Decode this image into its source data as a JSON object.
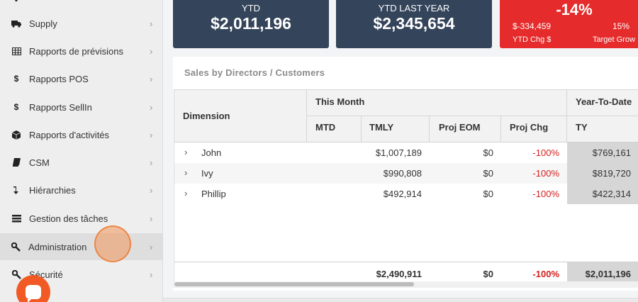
{
  "sidebar": {
    "items": [
      {
        "label": "Supply",
        "icon": "truck-icon",
        "glyph": "🚚"
      },
      {
        "label": "Rapports de prévisions",
        "icon": "table-icon",
        "glyph": "▦"
      },
      {
        "label": "Rapports POS",
        "icon": "dollar-icon",
        "glyph": "$"
      },
      {
        "label": "Rapports SellIn",
        "icon": "dollar-icon",
        "glyph": "$"
      },
      {
        "label": "Rapports d'activités",
        "icon": "cube-icon",
        "glyph": "⬢"
      },
      {
        "label": "CSM",
        "icon": "book-icon",
        "glyph": "▰"
      },
      {
        "label": "Hiérarchies",
        "icon": "level-down-icon",
        "glyph": "↴"
      },
      {
        "label": "Gestion des tâches",
        "icon": "tasks-icon",
        "glyph": "☰"
      },
      {
        "label": "Administration",
        "icon": "wrench-icon",
        "glyph": "🔧"
      },
      {
        "label": "Sécurité",
        "icon": "wrench-icon",
        "glyph": "🔧"
      }
    ],
    "chevron": "›",
    "active_index": 8
  },
  "kpis": {
    "ytd": {
      "label": "YTD",
      "value": "$2,011,196"
    },
    "ytd_last_year": {
      "label": "YTD LAST YEAR",
      "value": "$2,345,654"
    },
    "change": {
      "percent": "-14%",
      "chg_value": "$-334,459",
      "chg_label": "YTD Chg $",
      "target_value": "15%",
      "target_label": "Target Grow"
    }
  },
  "report": {
    "title": "Sales by Directors / Customers",
    "headers": {
      "dimension": "Dimension",
      "group_this_month": "This Month",
      "group_ytd": "Year-To-Date",
      "mtd": "MTD",
      "tmly": "TMLY",
      "proj_eom": "Proj EOM",
      "proj_chg": "Proj Chg",
      "ty": "TY"
    },
    "rows": [
      {
        "name": "John",
        "mtd": "",
        "tmly": "$1,007,189",
        "proj_eom": "$0",
        "proj_chg": "-100%",
        "ty": "$769,161"
      },
      {
        "name": "Ivy",
        "mtd": "",
        "tmly": "$990,808",
        "proj_eom": "$0",
        "proj_chg": "-100%",
        "ty": "$819,720"
      },
      {
        "name": "Phillip",
        "mtd": "",
        "tmly": "$492,914",
        "proj_eom": "$0",
        "proj_chg": "-100%",
        "ty": "$422,314"
      }
    ],
    "total": {
      "tmly": "$2,490,911",
      "proj_eom": "$0",
      "proj_chg": "-100%",
      "ty": "$2,011,196"
    },
    "expand_glyph": "›"
  },
  "colors": {
    "kpi_dark": "#34445a",
    "kpi_red": "#e52b2b",
    "negative": "#d42020",
    "chat": "#f15a24"
  }
}
